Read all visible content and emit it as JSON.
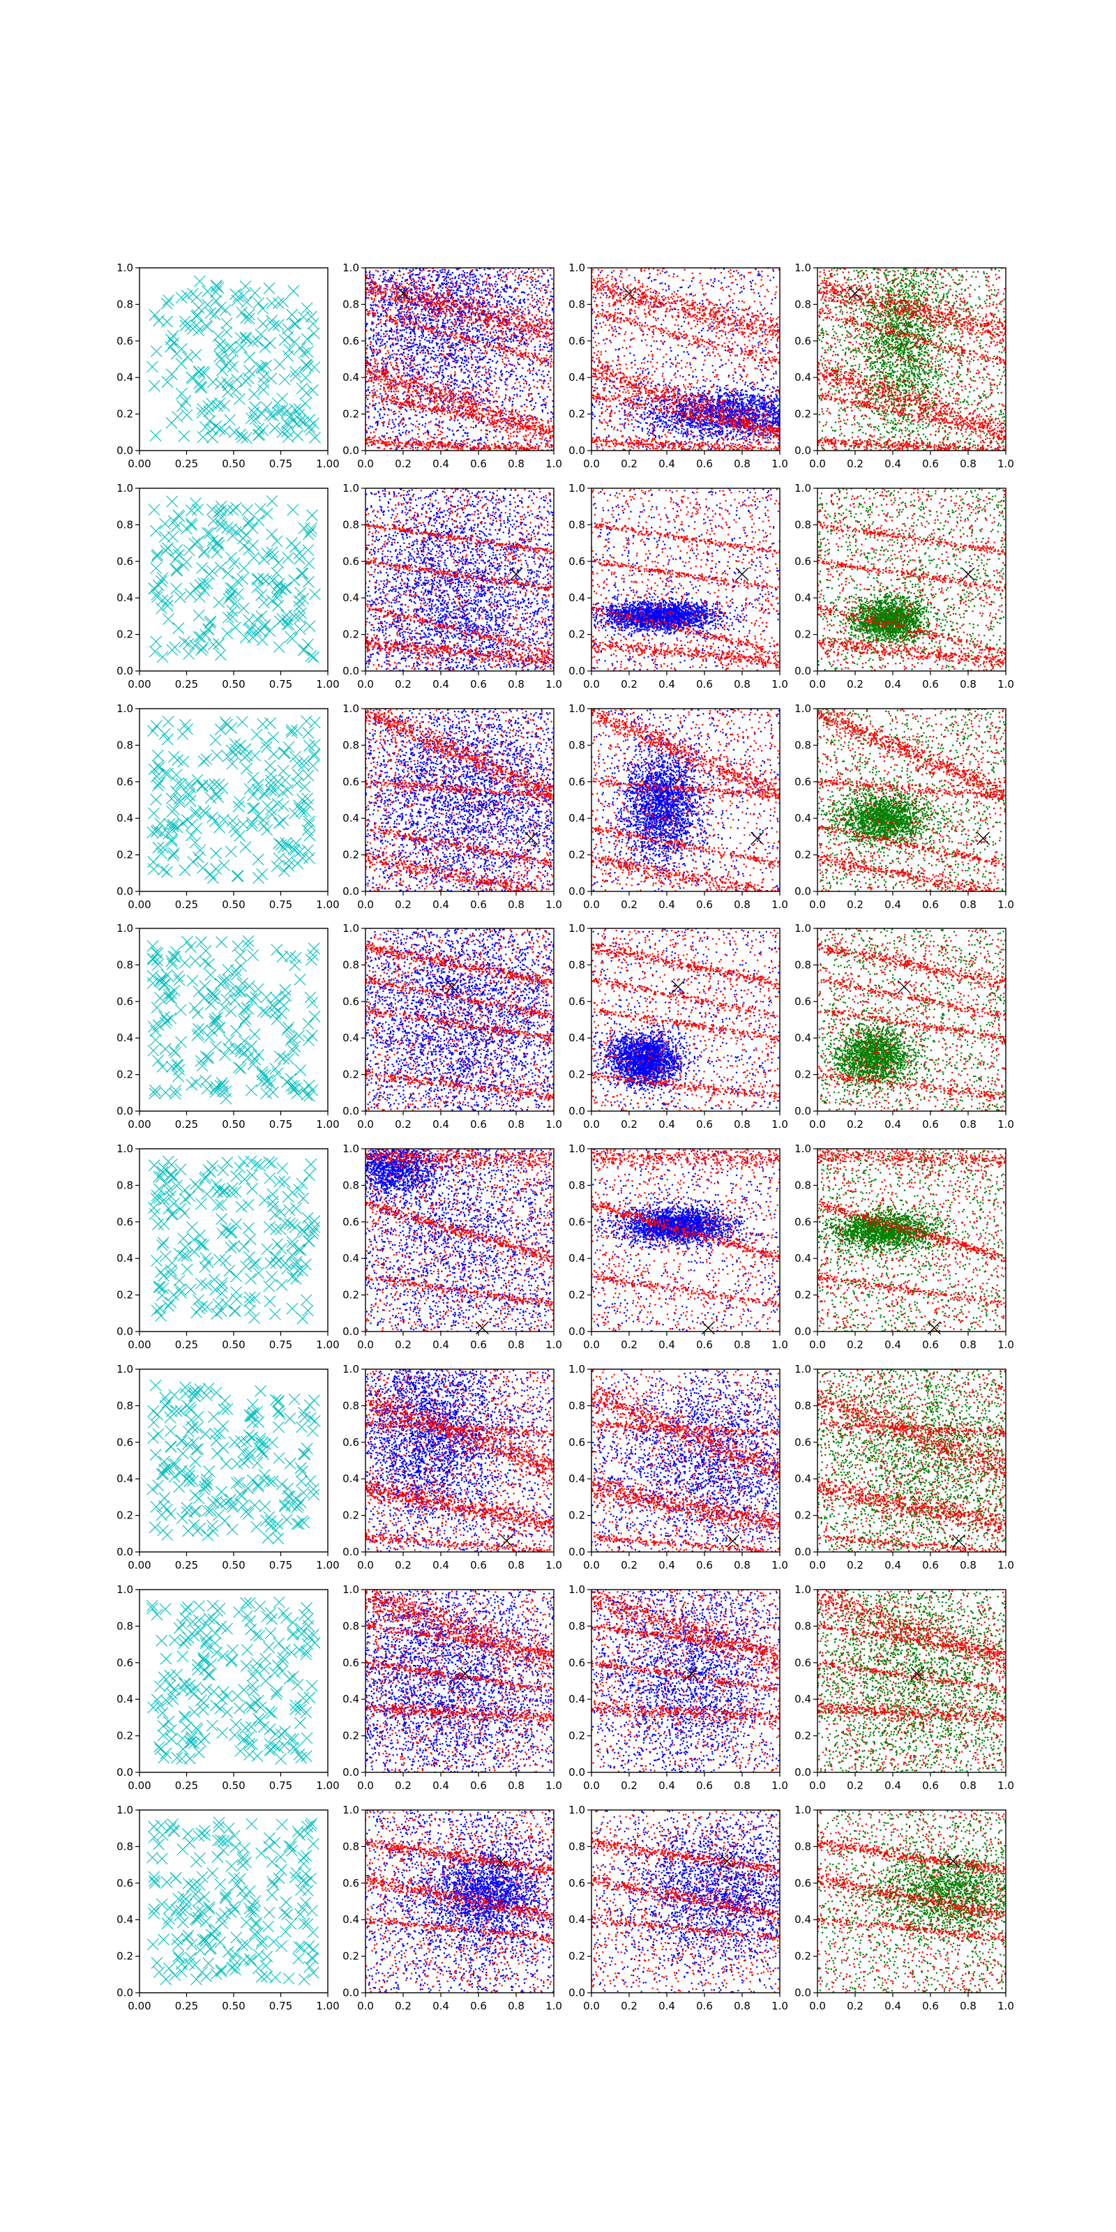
{
  "chart_data": {
    "type": "scatter",
    "grid": false,
    "layout": {
      "rows": 8,
      "cols": 4
    },
    "colors": {
      "uniform_markers": "#00bfbf",
      "red_points": "#ff0000",
      "blue_points": "#0000ff",
      "green_points": "#008000",
      "target_marker": "#000000"
    },
    "column_axes": [
      {
        "xlim": [
          0,
          1
        ],
        "ylim": [
          0,
          1
        ],
        "xticks": [
          "0.00",
          "0.25",
          "0.50",
          "0.75",
          "1.00"
        ],
        "yticks": [
          "0.0",
          "0.2",
          "0.4",
          "0.6",
          "0.8",
          "1.0"
        ]
      },
      {
        "xlim": [
          0,
          1
        ],
        "ylim": [
          0,
          1
        ],
        "xticks": [
          "0.0",
          "0.2",
          "0.4",
          "0.6",
          "0.8",
          "1.0"
        ],
        "yticks": [
          "0.0",
          "0.2",
          "0.4",
          "0.6",
          "0.8",
          "1.0"
        ]
      },
      {
        "xlim": [
          0,
          1
        ],
        "ylim": [
          0,
          1
        ],
        "xticks": [
          "0.0",
          "0.2",
          "0.4",
          "0.6",
          "0.8",
          "1.0"
        ],
        "yticks": [
          "0.0",
          "0.2",
          "0.4",
          "0.6",
          "0.8",
          "1.0"
        ]
      },
      {
        "xlim": [
          0,
          1
        ],
        "ylim": [
          0,
          1
        ],
        "xticks": [
          "0.0",
          "0.2",
          "0.4",
          "0.6",
          "0.8",
          "1.0"
        ],
        "yticks": [
          "0.0",
          "0.2",
          "0.4",
          "0.6",
          "0.8",
          "1.0"
        ]
      }
    ],
    "rows": [
      {
        "target": [
          0.2,
          0.86
        ],
        "bands": [
          {
            "y0": 0.9,
            "slope": -0.25,
            "w": 0.04
          },
          {
            "y0": 0.44,
            "slope": -0.35,
            "w": 0.04
          },
          {
            "y0": 0.76,
            "slope": -0.28,
            "w": 0.012
          },
          {
            "y0": 0.05,
            "slope": -0.05,
            "w": 0.015
          },
          {
            "y0": 0.3,
            "slope": -0.2,
            "w": 0.012
          }
        ],
        "col2_blobs": [
          {
            "x": 0.4,
            "y": 0.75,
            "sx": 0.3,
            "sy": 0.3
          }
        ],
        "col3_blob": {
          "x": 0.75,
          "y": 0.2,
          "sx": 0.25,
          "sy": 0.07
        },
        "col4_blob": {
          "x": 0.45,
          "y": 0.6,
          "sx": 0.12,
          "sy": 0.25
        }
      },
      {
        "target": [
          0.8,
          0.53
        ],
        "bands": [
          {
            "y0": 0.35,
            "slope": -0.25,
            "w": 0.012
          },
          {
            "y0": 0.15,
            "slope": -0.1,
            "w": 0.018
          },
          {
            "y0": 0.8,
            "slope": -0.15,
            "w": 0.008
          },
          {
            "y0": 0.6,
            "slope": -0.15,
            "w": 0.008
          }
        ],
        "col2_blobs": [
          {
            "x": 0.5,
            "y": 0.4,
            "sx": 0.3,
            "sy": 0.3
          }
        ],
        "col3_blob": {
          "x": 0.35,
          "y": 0.3,
          "sx": 0.15,
          "sy": 0.04
        },
        "col4_blob": {
          "x": 0.38,
          "y": 0.28,
          "sx": 0.1,
          "sy": 0.06
        }
      },
      {
        "target": [
          0.88,
          0.29
        ],
        "bands": [
          {
            "y0": 0.98,
            "slope": -0.45,
            "w": 0.03
          },
          {
            "y0": 0.18,
            "slope": -0.2,
            "w": 0.02
          },
          {
            "y0": 0.6,
            "slope": -0.08,
            "w": 0.01
          },
          {
            "y0": 0.35,
            "slope": -0.2,
            "w": 0.01
          }
        ],
        "col2_blobs": [
          {
            "x": 0.55,
            "y": 0.5,
            "sx": 0.3,
            "sy": 0.3
          }
        ],
        "col3_blob": {
          "x": 0.38,
          "y": 0.48,
          "sx": 0.1,
          "sy": 0.15
        },
        "col4_blob": {
          "x": 0.35,
          "y": 0.4,
          "sx": 0.12,
          "sy": 0.07
        }
      },
      {
        "target": [
          0.46,
          0.68
        ],
        "bands": [
          {
            "y0": 0.9,
            "slope": -0.2,
            "w": 0.015
          },
          {
            "y0": 0.72,
            "slope": -0.2,
            "w": 0.012
          },
          {
            "y0": 0.2,
            "slope": -0.12,
            "w": 0.012
          },
          {
            "y0": 0.55,
            "slope": -0.15,
            "w": 0.01
          }
        ],
        "col2_blobs": [
          {
            "x": 0.5,
            "y": 0.5,
            "sx": 0.3,
            "sy": 0.3
          }
        ],
        "col3_blob": {
          "x": 0.28,
          "y": 0.28,
          "sx": 0.1,
          "sy": 0.07
        },
        "col4_blob": {
          "x": 0.3,
          "y": 0.3,
          "sx": 0.1,
          "sy": 0.08
        }
      },
      {
        "target": [
          0.62,
          0.02
        ],
        "bands": [
          {
            "y0": 0.96,
            "slope": -0.02,
            "w": 0.025
          },
          {
            "y0": 0.7,
            "slope": -0.3,
            "w": 0.015
          },
          {
            "y0": 0.3,
            "slope": -0.15,
            "w": 0.01
          }
        ],
        "col2_blobs": [
          {
            "x": 0.15,
            "y": 0.9,
            "sx": 0.12,
            "sy": 0.08
          },
          {
            "x": 0.5,
            "y": 0.5,
            "sx": 0.3,
            "sy": 0.3
          }
        ],
        "col3_blob": {
          "x": 0.45,
          "y": 0.58,
          "sx": 0.15,
          "sy": 0.05
        },
        "col4_blob": {
          "x": 0.35,
          "y": 0.55,
          "sx": 0.15,
          "sy": 0.05
        }
      },
      {
        "target": [
          0.75,
          0.06
        ],
        "bands": [
          {
            "y0": 0.85,
            "slope": -0.4,
            "w": 0.04
          },
          {
            "y0": 0.35,
            "slope": -0.2,
            "w": 0.03
          },
          {
            "y0": 0.7,
            "slope": -0.05,
            "w": 0.01
          },
          {
            "y0": 0.08,
            "slope": -0.08,
            "w": 0.01
          }
        ],
        "col2_blobs": [
          {
            "x": 0.35,
            "y": 0.65,
            "sx": 0.2,
            "sy": 0.25
          }
        ],
        "col3_blob": {
          "x": 0.65,
          "y": 0.5,
          "sx": 0.3,
          "sy": 0.25
        },
        "col4_blob": {
          "x": 0.6,
          "y": 0.5,
          "sx": 0.3,
          "sy": 0.3
        }
      },
      {
        "target": [
          0.53,
          0.54
        ],
        "bands": [
          {
            "y0": 0.96,
            "slope": -0.35,
            "w": 0.04
          },
          {
            "y0": 0.35,
            "slope": -0.05,
            "w": 0.02
          },
          {
            "y0": 0.8,
            "slope": -0.15,
            "w": 0.01
          },
          {
            "y0": 0.6,
            "slope": -0.15,
            "w": 0.01
          }
        ],
        "col2_blobs": [
          {
            "x": 0.4,
            "y": 0.5,
            "sx": 0.3,
            "sy": 0.3
          }
        ],
        "col3_blob": {
          "x": 0.5,
          "y": 0.55,
          "sx": 0.25,
          "sy": 0.3
        },
        "col4_blob": {
          "x": 0.5,
          "y": 0.55,
          "sx": 0.3,
          "sy": 0.3
        }
      },
      {
        "target": [
          0.72,
          0.72
        ],
        "bands": [
          {
            "y0": 0.82,
            "slope": -0.15,
            "w": 0.015
          },
          {
            "y0": 0.62,
            "slope": -0.2,
            "w": 0.02
          },
          {
            "y0": 0.4,
            "slope": -0.1,
            "w": 0.01
          }
        ],
        "col2_blobs": [
          {
            "x": 0.65,
            "y": 0.55,
            "sx": 0.15,
            "sy": 0.1
          },
          {
            "x": 0.6,
            "y": 0.5,
            "sx": 0.25,
            "sy": 0.25
          }
        ],
        "col3_blob": {
          "x": 0.7,
          "y": 0.55,
          "sx": 0.25,
          "sy": 0.2
        },
        "col4_blob": {
          "x": 0.7,
          "y": 0.55,
          "sx": 0.2,
          "sy": 0.12
        }
      }
    ]
  }
}
